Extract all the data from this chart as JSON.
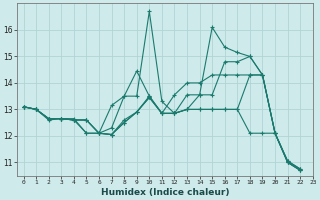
{
  "xlabel": "Humidex (Indice chaleur)",
  "ylabel": "",
  "bg_color": "#ceeaea",
  "line_color": "#1a7a6e",
  "grid_color": "#afd4d4",
  "xlim": [
    -0.5,
    23
  ],
  "ylim": [
    10.5,
    17.0
  ],
  "yticks": [
    11,
    12,
    13,
    14,
    15,
    16
  ],
  "xticks": [
    0,
    1,
    2,
    3,
    4,
    5,
    6,
    7,
    8,
    9,
    10,
    11,
    12,
    13,
    14,
    15,
    16,
    17,
    18,
    19,
    20,
    21,
    22,
    23
  ],
  "series": [
    [
      [
        0,
        13.1
      ],
      [
        1,
        13.0
      ],
      [
        2,
        12.6
      ],
      [
        3,
        12.65
      ],
      [
        4,
        12.65
      ],
      [
        5,
        12.1
      ],
      [
        6,
        12.1
      ],
      [
        7,
        13.15
      ],
      [
        8,
        13.5
      ],
      [
        9,
        13.5
      ],
      [
        10,
        16.7
      ],
      [
        11,
        13.3
      ],
      [
        12,
        12.85
      ],
      [
        13,
        13.55
      ],
      [
        14,
        13.55
      ],
      [
        15,
        16.1
      ],
      [
        16,
        15.35
      ],
      [
        17,
        15.15
      ],
      [
        18,
        15.0
      ],
      [
        19,
        14.3
      ],
      [
        20,
        12.1
      ],
      [
        21,
        11.05
      ],
      [
        22,
        10.75
      ]
    ],
    [
      [
        0,
        13.1
      ],
      [
        1,
        13.0
      ],
      [
        2,
        12.65
      ],
      [
        3,
        12.65
      ],
      [
        4,
        12.6
      ],
      [
        5,
        12.6
      ],
      [
        6,
        12.1
      ],
      [
        7,
        12.05
      ],
      [
        8,
        12.6
      ],
      [
        9,
        12.9
      ],
      [
        10,
        13.5
      ],
      [
        11,
        12.85
      ],
      [
        12,
        13.55
      ],
      [
        13,
        14.0
      ],
      [
        14,
        14.0
      ],
      [
        15,
        14.3
      ],
      [
        16,
        14.3
      ],
      [
        17,
        14.3
      ],
      [
        18,
        14.3
      ],
      [
        19,
        14.3
      ],
      [
        20,
        12.1
      ],
      [
        21,
        11.0
      ],
      [
        22,
        10.7
      ]
    ],
    [
      [
        0,
        13.1
      ],
      [
        1,
        13.0
      ],
      [
        2,
        12.65
      ],
      [
        3,
        12.65
      ],
      [
        4,
        12.6
      ],
      [
        5,
        12.6
      ],
      [
        6,
        12.1
      ],
      [
        7,
        12.05
      ],
      [
        8,
        12.5
      ],
      [
        9,
        12.9
      ],
      [
        10,
        13.45
      ],
      [
        11,
        12.85
      ],
      [
        12,
        12.85
      ],
      [
        13,
        13.0
      ],
      [
        14,
        13.55
      ],
      [
        15,
        13.55
      ],
      [
        16,
        14.8
      ],
      [
        17,
        14.8
      ],
      [
        18,
        15.0
      ],
      [
        19,
        14.3
      ],
      [
        20,
        12.1
      ],
      [
        21,
        11.0
      ],
      [
        22,
        10.7
      ]
    ],
    [
      [
        0,
        13.1
      ],
      [
        1,
        13.0
      ],
      [
        2,
        12.65
      ],
      [
        3,
        12.65
      ],
      [
        4,
        12.6
      ],
      [
        5,
        12.1
      ],
      [
        6,
        12.1
      ],
      [
        7,
        12.3
      ],
      [
        8,
        13.5
      ],
      [
        9,
        14.45
      ],
      [
        10,
        13.5
      ],
      [
        11,
        12.85
      ],
      [
        12,
        12.85
      ],
      [
        13,
        13.0
      ],
      [
        14,
        13.0
      ],
      [
        15,
        13.0
      ],
      [
        16,
        13.0
      ],
      [
        17,
        13.0
      ],
      [
        18,
        14.3
      ],
      [
        19,
        14.3
      ],
      [
        20,
        12.1
      ],
      [
        21,
        11.05
      ],
      [
        22,
        10.75
      ]
    ],
    [
      [
        0,
        13.1
      ],
      [
        1,
        13.0
      ],
      [
        2,
        12.65
      ],
      [
        3,
        12.65
      ],
      [
        4,
        12.6
      ],
      [
        5,
        12.6
      ],
      [
        6,
        12.1
      ],
      [
        7,
        12.05
      ],
      [
        8,
        12.5
      ],
      [
        9,
        12.9
      ],
      [
        10,
        13.45
      ],
      [
        11,
        12.85
      ],
      [
        12,
        12.85
      ],
      [
        13,
        13.0
      ],
      [
        14,
        13.0
      ],
      [
        15,
        13.0
      ],
      [
        16,
        13.0
      ],
      [
        17,
        13.0
      ],
      [
        18,
        12.1
      ],
      [
        19,
        12.1
      ],
      [
        20,
        12.1
      ],
      [
        21,
        11.0
      ],
      [
        22,
        10.7
      ]
    ]
  ]
}
